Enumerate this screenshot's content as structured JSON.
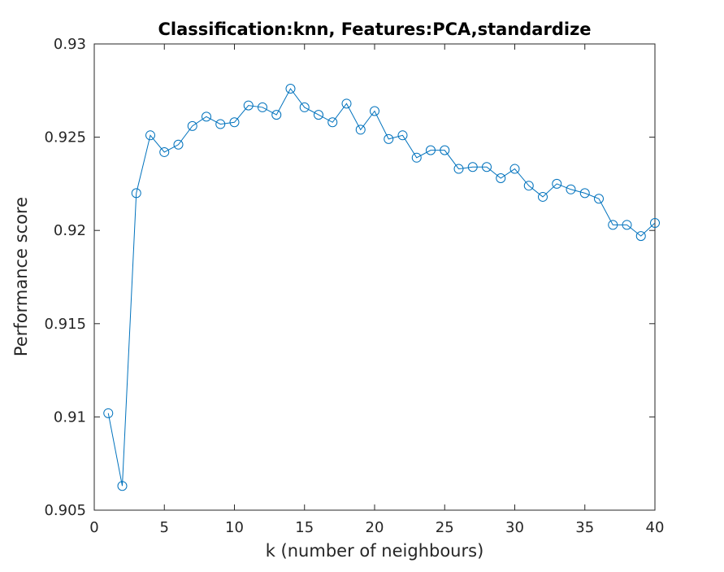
{
  "chart_data": {
    "type": "line",
    "title": "Classification:knn, Features:PCA,standardize",
    "xlabel": "k (number of neighbours)",
    "ylabel": "Performance score",
    "xlim": [
      0,
      40
    ],
    "ylim": [
      0.905,
      0.93
    ],
    "xticks": [
      "0",
      "5",
      "10",
      "15",
      "20",
      "25",
      "30",
      "35",
      "40"
    ],
    "yticks": [
      "0.905",
      "0.91",
      "0.915",
      "0.92",
      "0.925",
      "0.93"
    ],
    "grid": false,
    "marker": "circle",
    "line_color": "#0072BD",
    "series": [
      {
        "x": [
          1,
          2,
          3,
          4,
          5,
          6,
          7,
          8,
          9,
          10,
          11,
          12,
          13,
          14,
          15,
          16,
          17,
          18,
          19,
          20,
          21,
          22,
          23,
          24,
          25,
          26,
          27,
          28,
          29,
          30,
          31,
          32,
          33,
          34,
          35,
          36,
          37,
          38,
          39,
          40
        ],
        "y": [
          0.9102,
          0.9063,
          0.922,
          0.9251,
          0.9242,
          0.9246,
          0.9256,
          0.9261,
          0.9257,
          0.9258,
          0.9267,
          0.9266,
          0.9262,
          0.9276,
          0.9266,
          0.9262,
          0.9258,
          0.9268,
          0.9254,
          0.9264,
          0.9249,
          0.9251,
          0.9239,
          0.9243,
          0.9243,
          0.9233,
          0.9234,
          0.9234,
          0.9228,
          0.9233,
          0.9224,
          0.9218,
          0.9225,
          0.9222,
          0.922,
          0.9217,
          0.9203,
          0.9203,
          0.9197,
          0.9204
        ]
      }
    ]
  }
}
